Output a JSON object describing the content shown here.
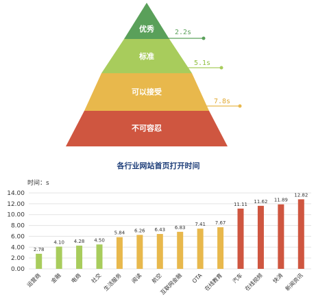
{
  "pyramid": {
    "tiers": [
      {
        "label": "优秀",
        "threshold": "2.2s",
        "color": "#5aa05a"
      },
      {
        "label": "标准",
        "threshold": "5.1s",
        "color": "#a8cc5c"
      },
      {
        "label": "可以接受",
        "threshold": "7.8s",
        "color": "#e8b84c"
      },
      {
        "label": "不可容忍",
        "threshold": "",
        "color": "#cf5640"
      }
    ]
  },
  "chart_data": {
    "type": "bar",
    "title": "各行业网站首页打开时间",
    "ylabel": "时间：s",
    "ylim": [
      0,
      14
    ],
    "yticks": [
      "0.00",
      "2.00",
      "4.00",
      "6.00",
      "8.00",
      "10.00",
      "12.00",
      "14.00"
    ],
    "grid": true,
    "categories": [
      "运营商",
      "金融",
      "电商",
      "社交",
      "生活服务",
      "阅读",
      "航空",
      "互联网金融",
      "OTA",
      "在线教育",
      "汽车",
      "在线视频",
      "快消",
      "新闻资讯"
    ],
    "values": [
      2.78,
      4.1,
      4.28,
      4.5,
      5.84,
      6.26,
      6.43,
      6.83,
      7.41,
      7.67,
      11.11,
      11.62,
      11.89,
      12.82
    ],
    "labels": [
      "2.78",
      "4.10",
      "4.28",
      "4.50",
      "5.84",
      "6.26",
      "6.43",
      "6.83",
      "7.41",
      "7.67",
      "11.11",
      "11.62",
      "11.89",
      "12.82"
    ],
    "colors": {
      "green": "#a8cc5c",
      "yellow": "#e8b84c",
      "red": "#cf5640"
    }
  }
}
